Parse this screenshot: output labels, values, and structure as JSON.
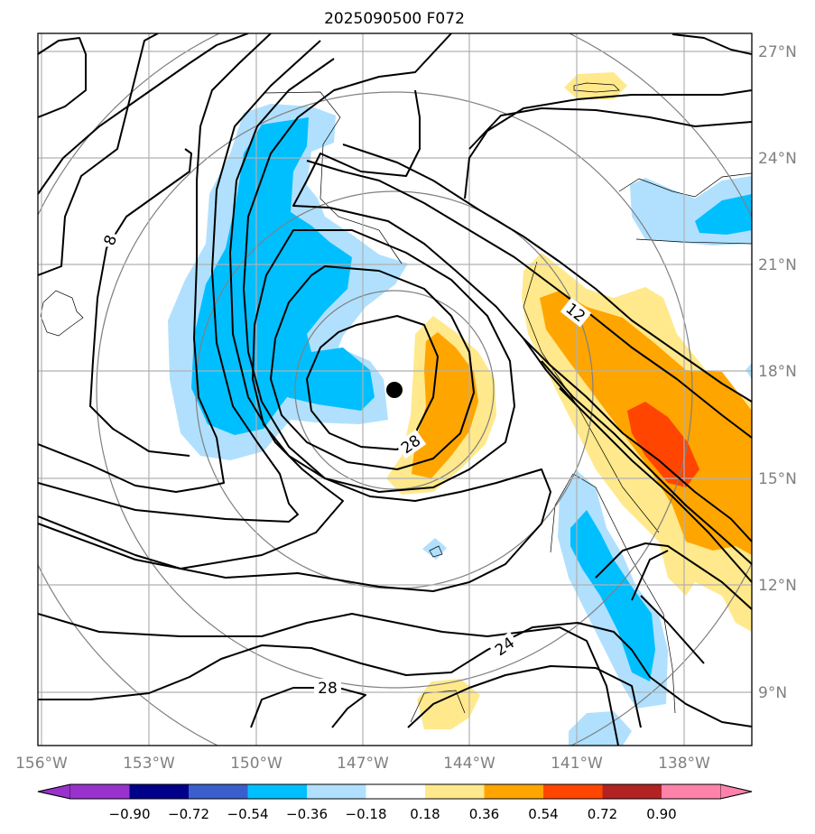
{
  "title": "2025090500 F072",
  "lat_labels": [
    "27°N",
    "24°N",
    "21°N",
    "18°N",
    "15°N",
    "12°N",
    "9°N"
  ],
  "lon_labels": [
    "156°W",
    "153°W",
    "150°W",
    "147°W",
    "144°W",
    "141°W",
    "138°W"
  ],
  "contour_labels": [
    "8",
    "12",
    "28",
    "24",
    "28"
  ],
  "colorbar": {
    "colors": [
      "#9932cc",
      "#00008b",
      "#3a5fcd",
      "#00bfff",
      "#b0e0fe",
      "#ffffff",
      "#ffe98c",
      "#ffa500",
      "#ff4500",
      "#b22222",
      "#ff82ab"
    ],
    "ticks": [
      "−0.90",
      "−0.72",
      "−0.54",
      "−0.36",
      "−0.18",
      "0.18",
      "0.36",
      "0.54",
      "0.72",
      "0.90"
    ]
  },
  "colors": {
    "contour": "#000000",
    "range_ring": "#808080",
    "grid": "#b0b0b0",
    "axis_label": "#808080"
  }
}
